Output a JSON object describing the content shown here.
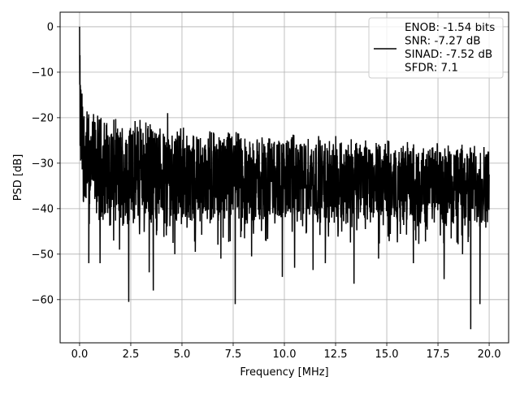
{
  "chart_data": {
    "type": "line",
    "title": "",
    "xlabel": "Frequency [MHz]",
    "ylabel": "PSD [dB]",
    "xlim": [
      -0.95,
      20.95
    ],
    "ylim": [
      -69.5,
      3.2
    ],
    "xticks": [
      0.0,
      2.5,
      5.0,
      7.5,
      10.0,
      12.5,
      15.0,
      17.5,
      20.0
    ],
    "xtick_labels": [
      "0.0",
      "2.5",
      "5.0",
      "7.5",
      "10.0",
      "12.5",
      "15.0",
      "17.5",
      "20.0"
    ],
    "yticks": [
      0,
      -10,
      -20,
      -30,
      -40,
      -50,
      -60
    ],
    "ytick_labels": [
      "0",
      "−10",
      "−20",
      "−30",
      "−40",
      "−50",
      "−60"
    ],
    "grid": true,
    "legend_placement": "upper-right",
    "series": [
      {
        "name": "ENOB: -1.54 bits\nSNR: -7.27 dB\nSINAD: -7.52 dB\nSFDR: 7.1",
        "color": "#000000",
        "description_points": {
          "x": [
            0.0,
            0.02,
            0.05,
            0.1,
            0.2,
            0.3,
            0.5,
            1.0,
            2.0,
            3.0,
            4.0,
            5.0,
            6.0,
            7.0,
            8.0,
            9.0,
            10.0,
            11.0,
            12.0,
            13.0,
            14.0,
            15.0,
            16.0,
            17.0,
            18.0,
            19.0,
            20.0
          ],
          "upper_envelope": [
            0,
            -8,
            -12,
            -14,
            -17,
            -19,
            -20,
            -21,
            -22,
            -22,
            -23,
            -23,
            -24,
            -24,
            -24.5,
            -25,
            -25,
            -25.5,
            -25.5,
            -26,
            -26,
            -26.5,
            -26.5,
            -27,
            -27,
            -27,
            -27
          ],
          "lower_envelope": [
            -28,
            -30,
            -33,
            -35,
            -37,
            -38,
            -40,
            -41,
            -42,
            -42,
            -42,
            -42,
            -42,
            -42,
            -42,
            -42,
            -42,
            -42,
            -42,
            -42,
            -42,
            -42,
            -42,
            -42,
            -42,
            -42,
            -42
          ]
        },
        "notable_dips": [
          {
            "x": 0.45,
            "y": -52
          },
          {
            "x": 1.0,
            "y": -52
          },
          {
            "x": 1.95,
            "y": -49
          },
          {
            "x": 2.4,
            "y": -60.5
          },
          {
            "x": 3.4,
            "y": -54
          },
          {
            "x": 3.6,
            "y": -58
          },
          {
            "x": 4.65,
            "y": -50
          },
          {
            "x": 5.65,
            "y": -49.5
          },
          {
            "x": 6.9,
            "y": -51
          },
          {
            "x": 7.6,
            "y": -61
          },
          {
            "x": 8.4,
            "y": -50.5
          },
          {
            "x": 9.9,
            "y": -55
          },
          {
            "x": 10.5,
            "y": -53
          },
          {
            "x": 11.4,
            "y": -53.5
          },
          {
            "x": 12.0,
            "y": -52
          },
          {
            "x": 13.4,
            "y": -56.5
          },
          {
            "x": 14.6,
            "y": -51
          },
          {
            "x": 16.3,
            "y": -52
          },
          {
            "x": 17.8,
            "y": -55.5
          },
          {
            "x": 18.7,
            "y": -50
          },
          {
            "x": 19.1,
            "y": -66.5
          },
          {
            "x": 19.55,
            "y": -61
          }
        ],
        "notable_peaks": [
          {
            "x": 0.0,
            "y": 0
          },
          {
            "x": 4.3,
            "y": -19
          },
          {
            "x": 2.95,
            "y": -20.5
          }
        ]
      }
    ]
  }
}
